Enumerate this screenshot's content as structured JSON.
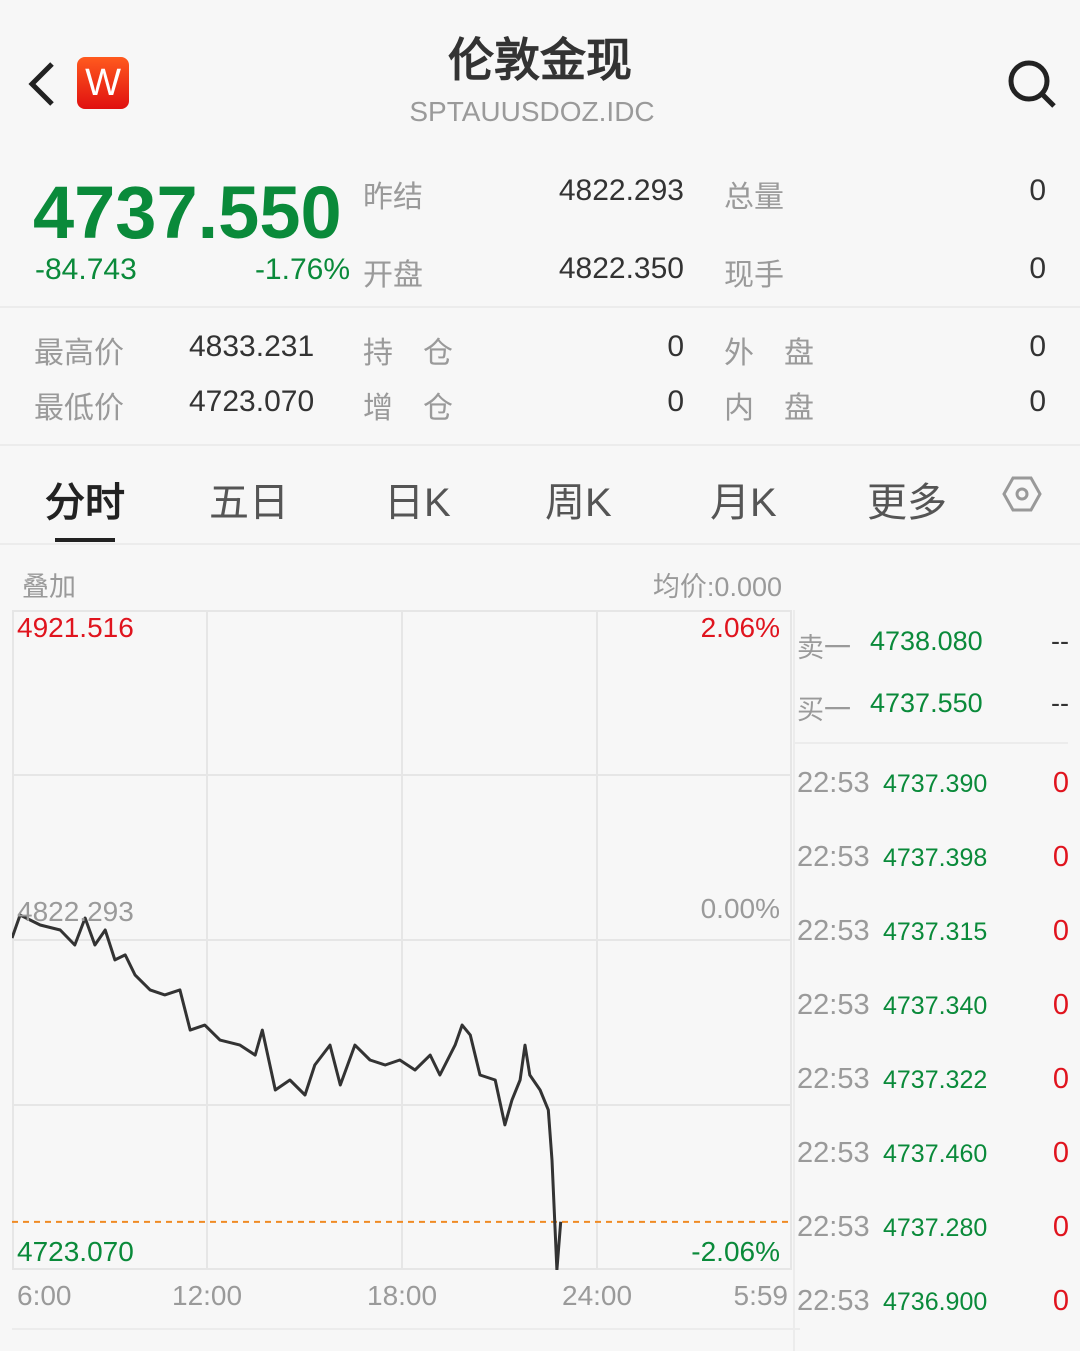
{
  "header": {
    "title": "伦敦金现",
    "code": "SPTAUUSDOZ.IDC",
    "logo": "W",
    "icons": [
      "back-icon",
      "search-icon"
    ]
  },
  "quote": {
    "price": "4737.550",
    "change": "-84.743",
    "change_pct": "-1.76%",
    "stats": [
      {
        "label": "昨结",
        "value": "4822.293"
      },
      {
        "label": "总量",
        "value": "0"
      },
      {
        "label": "开盘",
        "value": "4822.350"
      },
      {
        "label": "现手",
        "value": "0"
      }
    ],
    "details": [
      {
        "label": "最高价",
        "value": "4833.231"
      },
      {
        "label": "持　仓",
        "value": "0"
      },
      {
        "label": "外　盘",
        "value": "0"
      },
      {
        "label": "最低价",
        "value": "4723.070"
      },
      {
        "label": "增　仓",
        "value": "0"
      },
      {
        "label": "内　盘",
        "value": "0"
      }
    ]
  },
  "tabs": [
    {
      "label": "分时"
    },
    {
      "label": "五日"
    },
    {
      "label": "日K"
    },
    {
      "label": "周K"
    },
    {
      "label": "月K"
    },
    {
      "label": "更多"
    }
  ],
  "chart_header": {
    "overlay": "叠加",
    "avg_price": "均价:0.000"
  },
  "colors": {
    "up": "#e0141e",
    "down": "#0a8a3a",
    "line": "#333333",
    "current_price_line": "#f08a24"
  },
  "chart_data": {
    "type": "line",
    "ylim": [
      4723.07,
      4921.516
    ],
    "y_ticks_left": [
      "4921.516",
      "4822.293",
      "4723.070"
    ],
    "y_ticks_right": [
      "2.06%",
      "0.00%",
      "-2.06%"
    ],
    "x_ticks": [
      "6:00",
      "12:00",
      "18:00",
      "24:00",
      "5:59"
    ],
    "x_range": [
      "06:00",
      "05:59"
    ],
    "reference_price": 4822.293,
    "current_price": 4737.55,
    "grid": true,
    "series": [
      {
        "x": [
          "06:00",
          "06:15",
          "06:52",
          "07:29",
          "07:56",
          "08:15",
          "08:33",
          "08:52",
          "09:10",
          "09:29",
          "09:47",
          "10:15",
          "10:42",
          "11:10",
          "11:29",
          "11:56",
          "12:24",
          "13:01",
          "13:29",
          "13:42",
          "14:06",
          "14:33",
          "15:01",
          "15:19",
          "15:47",
          "16:06",
          "16:33",
          "17:01",
          "17:29",
          "17:56",
          "18:24",
          "18:52",
          "19:10",
          "19:38",
          "19:51",
          "20:06",
          "20:24",
          "20:52",
          "21:10",
          "21:23",
          "21:38",
          "21:47",
          "21:56",
          "22:15",
          "22:30",
          "22:37",
          "22:46",
          "22:53"
        ],
        "y": [
          4822.9,
          4829.8,
          4826.8,
          4825.3,
          4820.8,
          4828.9,
          4820.8,
          4825.3,
          4816.3,
          4817.8,
          4811.8,
          4807.3,
          4805.8,
          4807.3,
          4795.2,
          4796.7,
          4792.2,
          4790.7,
          4787.7,
          4795.2,
          4777.2,
          4780.2,
          4775.7,
          4784.7,
          4790.7,
          4778.7,
          4790.7,
          4786.2,
          4784.7,
          4786.2,
          4783.2,
          4787.7,
          4781.7,
          4790.7,
          4796.7,
          4793.7,
          4781.7,
          4780.2,
          4766.7,
          4774.2,
          4780.2,
          4790.7,
          4781.7,
          4777.2,
          4771.2,
          4756.1,
          4723.1,
          4737.55
        ]
      }
    ]
  },
  "order_book": {
    "asks": [
      {
        "label": "卖一",
        "price": "4738.080",
        "vol": "--"
      }
    ],
    "bids": [
      {
        "label": "买一",
        "price": "4737.550",
        "vol": "--"
      }
    ]
  },
  "ticks": [
    {
      "time": "22:53",
      "price": "4737.390",
      "vol": "0"
    },
    {
      "time": "22:53",
      "price": "4737.398",
      "vol": "0"
    },
    {
      "time": "22:53",
      "price": "4737.315",
      "vol": "0"
    },
    {
      "time": "22:53",
      "price": "4737.340",
      "vol": "0"
    },
    {
      "time": "22:53",
      "price": "4737.322",
      "vol": "0"
    },
    {
      "time": "22:53",
      "price": "4737.460",
      "vol": "0"
    },
    {
      "time": "22:53",
      "price": "4737.280",
      "vol": "0"
    },
    {
      "time": "22:53",
      "price": "4736.900",
      "vol": "0"
    }
  ]
}
